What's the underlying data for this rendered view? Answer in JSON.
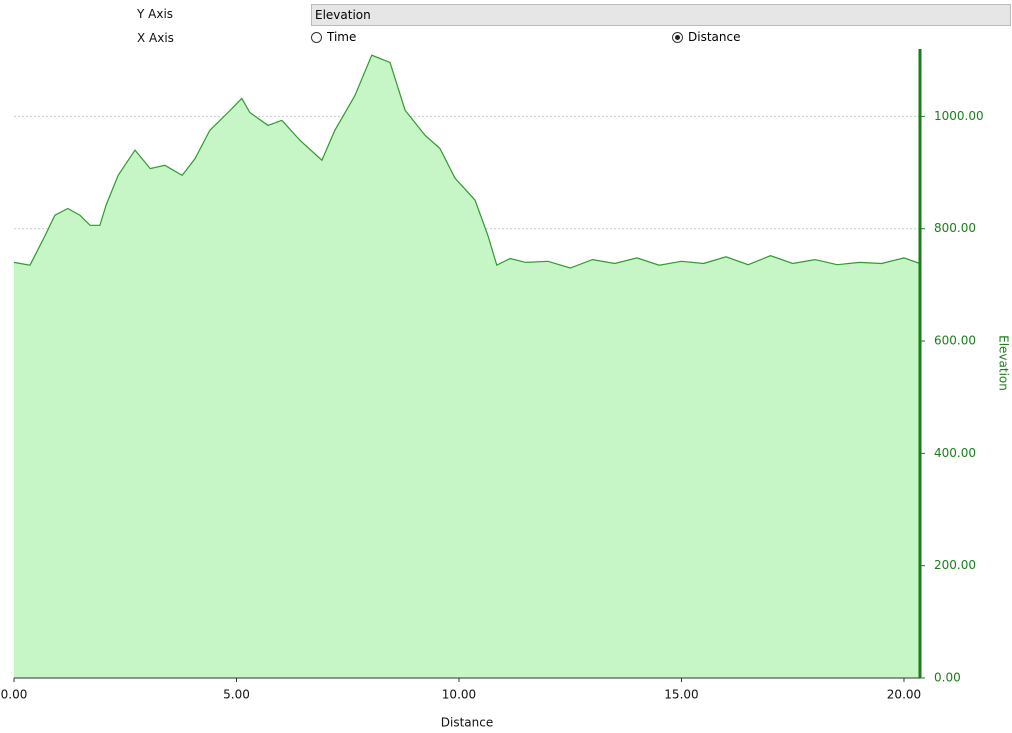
{
  "controls": {
    "y_axis_label": "Y Axis",
    "y_axis_value": "Elevation",
    "x_axis_label": "X Axis",
    "x_options": [
      "Time",
      "Distance"
    ],
    "x_selected": 1
  },
  "chart_data": {
    "type": "area",
    "x_label": "Distance",
    "y_label": "Elevation",
    "x": [
      0,
      0.36,
      0.7,
      0.92,
      1.21,
      1.48,
      1.71,
      1.93,
      2.07,
      2.34,
      2.72,
      3.06,
      3.39,
      3.78,
      4.07,
      4.4,
      4.81,
      5.12,
      5.3,
      5.71,
      6.02,
      6.43,
      6.92,
      7.21,
      7.66,
      8.04,
      8.45,
      8.79,
      9.24,
      9.57,
      9.91,
      10.36,
      10.65,
      10.85,
      11.15,
      11.5,
      12,
      12.5,
      13,
      13.5,
      14,
      14.5,
      15,
      15.5,
      16,
      16.5,
      17,
      17.5,
      18,
      18.5,
      19,
      19.5,
      20,
      20.36
    ],
    "series": [
      {
        "name": "Elevation",
        "color": "#2e9b2e",
        "fill": "#c6f5c6",
        "values": [
          740,
          735,
          788,
          824,
          836,
          824,
          806,
          806,
          842,
          895,
          940,
          907,
          913,
          895,
          925,
          975,
          1007,
          1032,
          1007,
          984,
          993,
          957,
          922,
          975,
          1037,
          1109,
          1096,
          1011,
          966,
          943,
          890,
          851,
          788,
          735,
          747,
          740,
          742,
          730,
          745,
          738,
          748,
          735,
          742,
          738,
          750,
          736,
          752,
          738,
          745,
          736,
          740,
          738,
          748,
          738
        ]
      }
    ],
    "xlim": [
      0,
      20.36
    ],
    "ylim": [
      0,
      1120
    ],
    "xticks": [
      {
        "value": 0,
        "label": "0.00"
      },
      {
        "value": 5,
        "label": "5.00"
      },
      {
        "value": 10,
        "label": "10.00"
      },
      {
        "value": 15,
        "label": "15.00"
      },
      {
        "value": 20,
        "label": "20.00"
      }
    ],
    "yticks": [
      {
        "value": 0,
        "label": "0.00"
      },
      {
        "value": 200,
        "label": "200.00"
      },
      {
        "value": 400,
        "label": "400.00"
      },
      {
        "value": 600,
        "label": "600.00"
      },
      {
        "value": 800,
        "label": "800.00"
      },
      {
        "value": 1000,
        "label": "1000.00"
      }
    ],
    "axis_color": "#1a7f1a",
    "grid": true
  }
}
